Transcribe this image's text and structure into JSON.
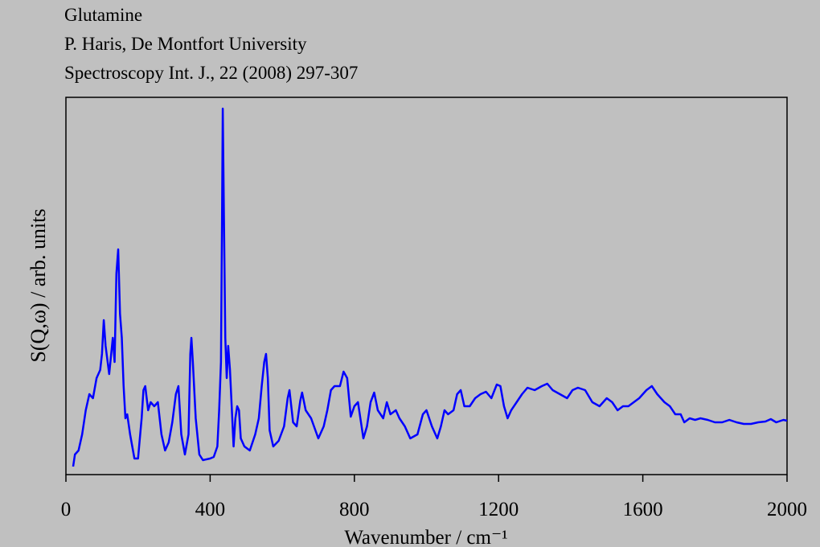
{
  "chart_data": {
    "type": "line",
    "title": "Glutamine",
    "subtitle": [
      "P. Haris, De Montfort University",
      "Spectroscopy Int. J., 22 (2008) 297-307"
    ],
    "x_label": "Wavenumber / cm⁻¹",
    "y_label": "S(Q,ω) / arb. units",
    "xlim": [
      0,
      2000
    ],
    "xticks": [
      0,
      400,
      800,
      1200,
      1600,
      2000
    ],
    "ylim": [
      0,
      469
    ],
    "x": [
      20,
      25,
      35,
      45,
      55,
      65,
      75,
      85,
      95,
      100,
      105,
      110,
      120,
      130,
      135,
      140,
      145,
      150,
      155,
      160,
      165,
      170,
      178,
      190,
      200,
      210,
      215,
      220,
      228,
      235,
      245,
      255,
      265,
      275,
      285,
      295,
      305,
      312,
      320,
      330,
      340,
      345,
      348,
      352,
      360,
      370,
      380,
      400,
      410,
      420,
      425,
      430,
      433,
      435,
      438,
      442,
      446,
      450,
      455,
      465,
      470,
      475,
      480,
      485,
      495,
      510,
      525,
      535,
      543,
      550,
      555,
      560,
      565,
      575,
      590,
      605,
      615,
      620,
      630,
      640,
      650,
      655,
      665,
      680,
      700,
      715,
      725,
      735,
      745,
      760,
      770,
      780,
      790,
      800,
      810,
      825,
      835,
      845,
      855,
      865,
      880,
      890,
      900,
      915,
      925,
      940,
      955,
      975,
      990,
      1000,
      1015,
      1030,
      1040,
      1050,
      1060,
      1075,
      1085,
      1095,
      1105,
      1120,
      1135,
      1150,
      1165,
      1180,
      1195,
      1205,
      1215,
      1225,
      1235,
      1250,
      1265,
      1280,
      1300,
      1320,
      1335,
      1350,
      1370,
      1390,
      1405,
      1420,
      1440,
      1460,
      1480,
      1500,
      1515,
      1530,
      1545,
      1560,
      1575,
      1590,
      1610,
      1625,
      1640,
      1660,
      1675,
      1690,
      1705,
      1715,
      1730,
      1745,
      1760,
      1780,
      1800,
      1820,
      1840,
      1860,
      1880,
      1900,
      1920,
      1940,
      1955,
      1970,
      1990,
      2000
    ],
    "series": [
      {
        "name": "Glutamine",
        "color": "#0000ff",
        "values": [
          10,
          25,
          30,
          50,
          80,
          100,
          95,
          120,
          130,
          150,
          192,
          160,
          125,
          170,
          140,
          250,
          280,
          200,
          170,
          110,
          70,
          75,
          50,
          20,
          20,
          70,
          105,
          110,
          80,
          90,
          85,
          90,
          50,
          30,
          40,
          65,
          100,
          110,
          50,
          25,
          50,
          150,
          170,
          140,
          70,
          25,
          18,
          20,
          22,
          35,
          80,
          140,
          320,
          455,
          330,
          170,
          120,
          160,
          130,
          35,
          70,
          85,
          80,
          45,
          35,
          30,
          50,
          70,
          110,
          140,
          150,
          120,
          55,
          35,
          42,
          60,
          95,
          105,
          65,
          60,
          92,
          102,
          80,
          70,
          45,
          60,
          80,
          105,
          110,
          110,
          128,
          120,
          72,
          85,
          90,
          45,
          60,
          90,
          102,
          80,
          70,
          90,
          75,
          80,
          70,
          60,
          45,
          50,
          75,
          80,
          60,
          45,
          60,
          80,
          75,
          80,
          100,
          105,
          85,
          85,
          95,
          100,
          103,
          95,
          112,
          110,
          85,
          70,
          80,
          90,
          100,
          108,
          105,
          110,
          113,
          105,
          100,
          95,
          105,
          108,
          105,
          90,
          85,
          95,
          90,
          80,
          85,
          85,
          90,
          95,
          105,
          110,
          100,
          90,
          85,
          75,
          75,
          65,
          70,
          68,
          70,
          68,
          65,
          65,
          68,
          65,
          63,
          63,
          65,
          66,
          69,
          65,
          68,
          67
        ]
      }
    ]
  }
}
